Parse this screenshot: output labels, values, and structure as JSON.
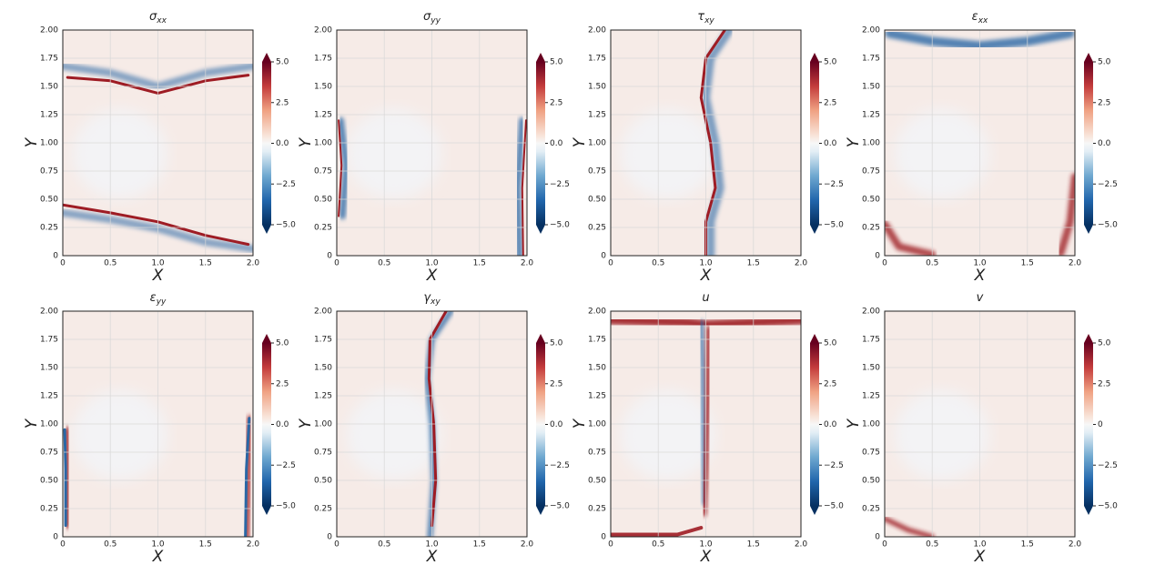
{
  "chart_data": {
    "type": "contour_grid",
    "xlabel": "X",
    "ylabel": "Y",
    "xlim": [
      0,
      2
    ],
    "xticks": [
      0,
      0.5,
      {
        "value": 1,
        "label": "1.0"
      },
      1.5,
      {
        "value": 2,
        "label": "2.0"
      }
    ],
    "ylim": [
      0,
      2
    ],
    "yticks": [
      0,
      0.25,
      {
        "value": 0.5,
        "label": "0.50"
      },
      0.75,
      {
        "value": 1,
        "label": "1.00"
      },
      1.25,
      {
        "value": 1.5,
        "label": "1.50"
      },
      1.75,
      {
        "value": 2,
        "label": "2.00"
      }
    ],
    "clim": [
      -5,
      5
    ],
    "cticks": [
      {
        "value": 5,
        "label": "5.0"
      },
      2.5,
      {
        "value": 0,
        "label": "0.0"
      },
      {
        "value": -2.5,
        "label": "−2.5"
      },
      {
        "value": -5,
        "label": "−5.0"
      }
    ],
    "grid": true,
    "panels": [
      {
        "title": "σ",
        "subscript": "xx"
      },
      {
        "title": "σ",
        "subscript": "yy"
      },
      {
        "title": "τ",
        "subscript": "xy"
      },
      {
        "title": "ε",
        "subscript": "xx"
      },
      {
        "title": "ε",
        "subscript": "yy"
      },
      {
        "title": "γ",
        "subscript": "xy"
      },
      {
        "title": "u"
      },
      {
        "title": "v",
        "cticks": [
          {
            "value": 5,
            "label": "5.0"
          },
          2.5,
          0,
          {
            "value": -2.5,
            "label": "−2.5"
          },
          {
            "value": -5,
            "label": "−5.0"
          }
        ]
      }
    ]
  }
}
